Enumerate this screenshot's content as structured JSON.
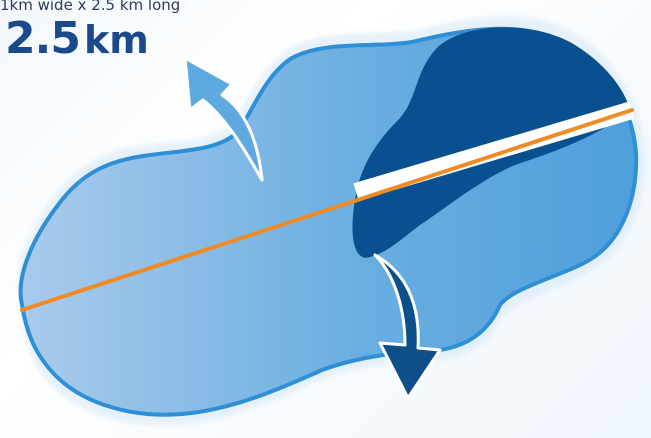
{
  "header": {
    "subtitle": "1km wide x 2.5 km long",
    "measurement_value": "2.5",
    "measurement_unit": "km"
  },
  "colors": {
    "lake_light": "#a9cbec",
    "lake_mid": "#6aaee0",
    "lake_edge": "#2f8fd6",
    "deep_zone": "#08508f",
    "light_arrow": "#5ea9e0",
    "dark_arrow": "#0d4f8b",
    "measure_line": "#f08a24",
    "highlight_band": "#ffffff",
    "title_blue": "#1a4a8c"
  },
  "icons": {
    "outflow_arrow_up": "curved-arrow-up-left-icon",
    "outflow_arrow_down": "curved-arrow-down-icon"
  }
}
